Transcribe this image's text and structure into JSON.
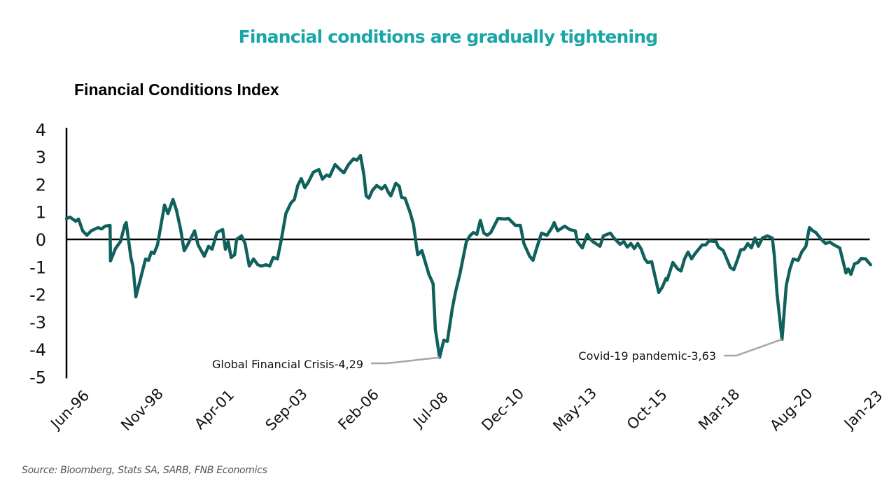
{
  "headline": "Financial conditions are gradually tightening",
  "source": "Source: Bloomberg, Stats SA, SARB, FNB Economics",
  "colors": {
    "headline": "#1aa6a8",
    "series": "#10605c",
    "axis": "#000000",
    "leader": "#a6a6a6"
  },
  "chart_data": {
    "type": "line",
    "title": "Financial Conditions Index",
    "xlabel": "",
    "ylabel": "",
    "ylim": [
      -5,
      4
    ],
    "yticks": [
      4,
      3,
      2,
      1,
      0,
      -1,
      -2,
      -3,
      -4,
      -5
    ],
    "ytick_labels": [
      "4",
      "3",
      "2",
      "1",
      "0",
      "-1",
      "-2",
      "-3",
      "-4",
      "-5"
    ],
    "x_unit": "months since Jun-96",
    "xlim": [
      0,
      323
    ],
    "xticks": [
      0,
      29,
      58,
      87,
      116,
      145,
      174,
      203,
      232,
      261,
      290,
      319
    ],
    "xtick_labels": [
      "Jun-96",
      "Nov-98",
      "Apr-01",
      "Sep-03",
      "Feb-06",
      "Jul-08",
      "Dec-10",
      "May-13",
      "Oct-15",
      "Mar-18",
      "Aug-20",
      "Jan-23"
    ],
    "grid": false,
    "zero_line": true,
    "legend": "none",
    "series": [
      {
        "name": "Financial Conditions Index",
        "points": [
          [
            0,
            0.76
          ],
          [
            1.4,
            0.81
          ],
          [
            3.7,
            0.66
          ],
          [
            4.8,
            0.74
          ],
          [
            6.5,
            0.31
          ],
          [
            8.2,
            0.15
          ],
          [
            9.9,
            0.31
          ],
          [
            12.7,
            0.43
          ],
          [
            14.1,
            0.38
          ],
          [
            15.5,
            0.48
          ],
          [
            17.5,
            0.51
          ],
          [
            17.7,
            -0.78
          ],
          [
            19.7,
            -0.33
          ],
          [
            21.7,
            -0.08
          ],
          [
            23.4,
            0.51
          ],
          [
            24.0,
            0.61
          ],
          [
            25.9,
            -0.66
          ],
          [
            26.7,
            -0.97
          ],
          [
            27.9,
            -2.09
          ],
          [
            29.6,
            -1.48
          ],
          [
            31.8,
            -0.71
          ],
          [
            33.0,
            -0.76
          ],
          [
            34.1,
            -0.46
          ],
          [
            35.2,
            -0.51
          ],
          [
            36.6,
            -0.2
          ],
          [
            39.4,
            1.25
          ],
          [
            40.8,
            0.94
          ],
          [
            42.8,
            1.45
          ],
          [
            44.2,
            1.07
          ],
          [
            45.9,
            0.36
          ],
          [
            47.3,
            -0.41
          ],
          [
            48.7,
            -0.2
          ],
          [
            51.5,
            0.31
          ],
          [
            52.9,
            -0.2
          ],
          [
            55.4,
            -0.61
          ],
          [
            57.1,
            -0.25
          ],
          [
            58.5,
            -0.36
          ],
          [
            60.5,
            0.25
          ],
          [
            62.8,
            0.36
          ],
          [
            63.9,
            -0.36
          ],
          [
            65.0,
            -0.08
          ],
          [
            66.2,
            -0.66
          ],
          [
            67.6,
            -0.56
          ],
          [
            68.4,
            0.0
          ],
          [
            70.4,
            0.13
          ],
          [
            71.8,
            -0.15
          ],
          [
            73.5,
            -0.97
          ],
          [
            75.2,
            -0.71
          ],
          [
            76.9,
            -0.92
          ],
          [
            78.3,
            -0.97
          ],
          [
            80.3,
            -0.92
          ],
          [
            81.7,
            -0.97
          ],
          [
            83.1,
            -0.66
          ],
          [
            84.8,
            -0.71
          ],
          [
            86.5,
            0.05
          ],
          [
            88.2,
            0.94
          ],
          [
            90.2,
            1.32
          ],
          [
            91.6,
            1.45
          ],
          [
            93.0,
            1.96
          ],
          [
            94.4,
            2.21
          ],
          [
            95.8,
            1.88
          ],
          [
            97.3,
            2.09
          ],
          [
            99.2,
            2.44
          ],
          [
            101.5,
            2.54
          ],
          [
            102.9,
            2.19
          ],
          [
            104.6,
            2.34
          ],
          [
            105.8,
            2.29
          ],
          [
            108.0,
            2.72
          ],
          [
            110.0,
            2.54
          ],
          [
            111.5,
            2.42
          ],
          [
            113.4,
            2.72
          ],
          [
            115.4,
            2.93
          ],
          [
            116.8,
            2.88
          ],
          [
            118.2,
            3.05
          ],
          [
            119.6,
            2.34
          ],
          [
            120.5,
            1.58
          ],
          [
            121.6,
            1.5
          ],
          [
            123.0,
            1.78
          ],
          [
            124.7,
            1.96
          ],
          [
            126.7,
            1.83
          ],
          [
            128.1,
            1.96
          ],
          [
            129.5,
            1.7
          ],
          [
            130.4,
            1.58
          ],
          [
            132.4,
            2.04
          ],
          [
            133.8,
            1.93
          ],
          [
            134.7,
            1.53
          ],
          [
            136.1,
            1.5
          ],
          [
            138.1,
            0.99
          ],
          [
            139.5,
            0.56
          ],
          [
            141.2,
            -0.56
          ],
          [
            142.9,
            -0.41
          ],
          [
            144.3,
            -0.84
          ],
          [
            145.7,
            -1.27
          ],
          [
            147.4,
            -1.61
          ],
          [
            148.3,
            -3.26
          ],
          [
            150.0,
            -4.29
          ],
          [
            151.7,
            -3.66
          ],
          [
            153.1,
            -3.71
          ],
          [
            155.1,
            -2.52
          ],
          [
            156.5,
            -1.88
          ],
          [
            158.2,
            -1.25
          ],
          [
            159.4,
            -0.71
          ],
          [
            160.8,
            -0.08
          ],
          [
            162.2,
            0.13
          ],
          [
            163.6,
            0.25
          ],
          [
            165.0,
            0.18
          ],
          [
            166.4,
            0.69
          ],
          [
            167.8,
            0.23
          ],
          [
            169.2,
            0.15
          ],
          [
            170.6,
            0.25
          ],
          [
            173.5,
            0.76
          ],
          [
            176.3,
            0.74
          ],
          [
            177.7,
            0.76
          ],
          [
            180.5,
            0.51
          ],
          [
            182.5,
            0.51
          ],
          [
            183.9,
            -0.15
          ],
          [
            186.2,
            -0.61
          ],
          [
            187.6,
            -0.76
          ],
          [
            189.0,
            -0.33
          ],
          [
            191.0,
            0.23
          ],
          [
            193.2,
            0.15
          ],
          [
            195.2,
            0.43
          ],
          [
            196.1,
            0.61
          ],
          [
            197.5,
            0.31
          ],
          [
            200.3,
            0.48
          ],
          [
            202.3,
            0.36
          ],
          [
            204.6,
            0.31
          ],
          [
            205.4,
            -0.08
          ],
          [
            207.4,
            -0.31
          ],
          [
            209.4,
            0.18
          ],
          [
            210.2,
            0.05
          ],
          [
            211.6,
            -0.08
          ],
          [
            214.5,
            -0.25
          ],
          [
            215.9,
            0.13
          ],
          [
            218.7,
            0.23
          ],
          [
            220.1,
            0.05
          ],
          [
            222.6,
            -0.18
          ],
          [
            224.1,
            -0.08
          ],
          [
            225.5,
            -0.28
          ],
          [
            226.9,
            -0.15
          ],
          [
            228.3,
            -0.33
          ],
          [
            229.7,
            -0.15
          ],
          [
            231.1,
            -0.36
          ],
          [
            232.5,
            -0.71
          ],
          [
            233.6,
            -0.84
          ],
          [
            235.3,
            -0.81
          ],
          [
            238.1,
            -1.93
          ],
          [
            239.6,
            -1.73
          ],
          [
            241.0,
            -1.42
          ],
          [
            241.5,
            -1.48
          ],
          [
            243.8,
            -0.84
          ],
          [
            245.7,
            -1.07
          ],
          [
            247.1,
            -1.15
          ],
          [
            248.5,
            -0.71
          ],
          [
            249.9,
            -0.46
          ],
          [
            251.3,
            -0.71
          ],
          [
            252.8,
            -0.51
          ],
          [
            255.6,
            -0.2
          ],
          [
            257.0,
            -0.2
          ],
          [
            258.4,
            -0.05
          ],
          [
            261.2,
            -0.08
          ],
          [
            262.1,
            -0.28
          ],
          [
            264.1,
            -0.41
          ],
          [
            265.5,
            -0.71
          ],
          [
            266.9,
            -1.02
          ],
          [
            268.3,
            -1.1
          ],
          [
            269.7,
            -0.76
          ],
          [
            271.1,
            -0.38
          ],
          [
            272.5,
            -0.36
          ],
          [
            273.9,
            -0.15
          ],
          [
            275.4,
            -0.31
          ],
          [
            276.8,
            0.05
          ],
          [
            278.2,
            -0.25
          ],
          [
            279.8,
            0.05
          ],
          [
            281.8,
            0.13
          ],
          [
            283.8,
            0.05
          ],
          [
            284.6,
            -0.59
          ],
          [
            285.7,
            -1.99
          ],
          [
            287.7,
            -3.63
          ],
          [
            289.4,
            -1.68
          ],
          [
            290.8,
            -1.1
          ],
          [
            292.2,
            -0.71
          ],
          [
            294.2,
            -0.76
          ],
          [
            295.6,
            -0.46
          ],
          [
            297.3,
            -0.25
          ],
          [
            298.7,
            0.43
          ],
          [
            300.1,
            0.31
          ],
          [
            301.3,
            0.25
          ],
          [
            303.5,
            0.0
          ],
          [
            305.2,
            -0.15
          ],
          [
            306.9,
            -0.1
          ],
          [
            308.6,
            -0.2
          ],
          [
            310.9,
            -0.31
          ],
          [
            312.0,
            -0.71
          ],
          [
            313.4,
            -1.22
          ],
          [
            314.3,
            -1.07
          ],
          [
            315.4,
            -1.27
          ],
          [
            316.8,
            -0.89
          ],
          [
            318.2,
            -0.84
          ],
          [
            319.6,
            -0.69
          ],
          [
            321.3,
            -0.71
          ],
          [
            323.3,
            -0.92
          ]
        ]
      }
    ],
    "annotations": [
      {
        "text": "Global Financial Crisis-4,29",
        "x": 150.0,
        "y": -4.29
      },
      {
        "text": "Covid-19 pandemic-3,63",
        "x": 287.7,
        "y": -3.63
      }
    ]
  }
}
